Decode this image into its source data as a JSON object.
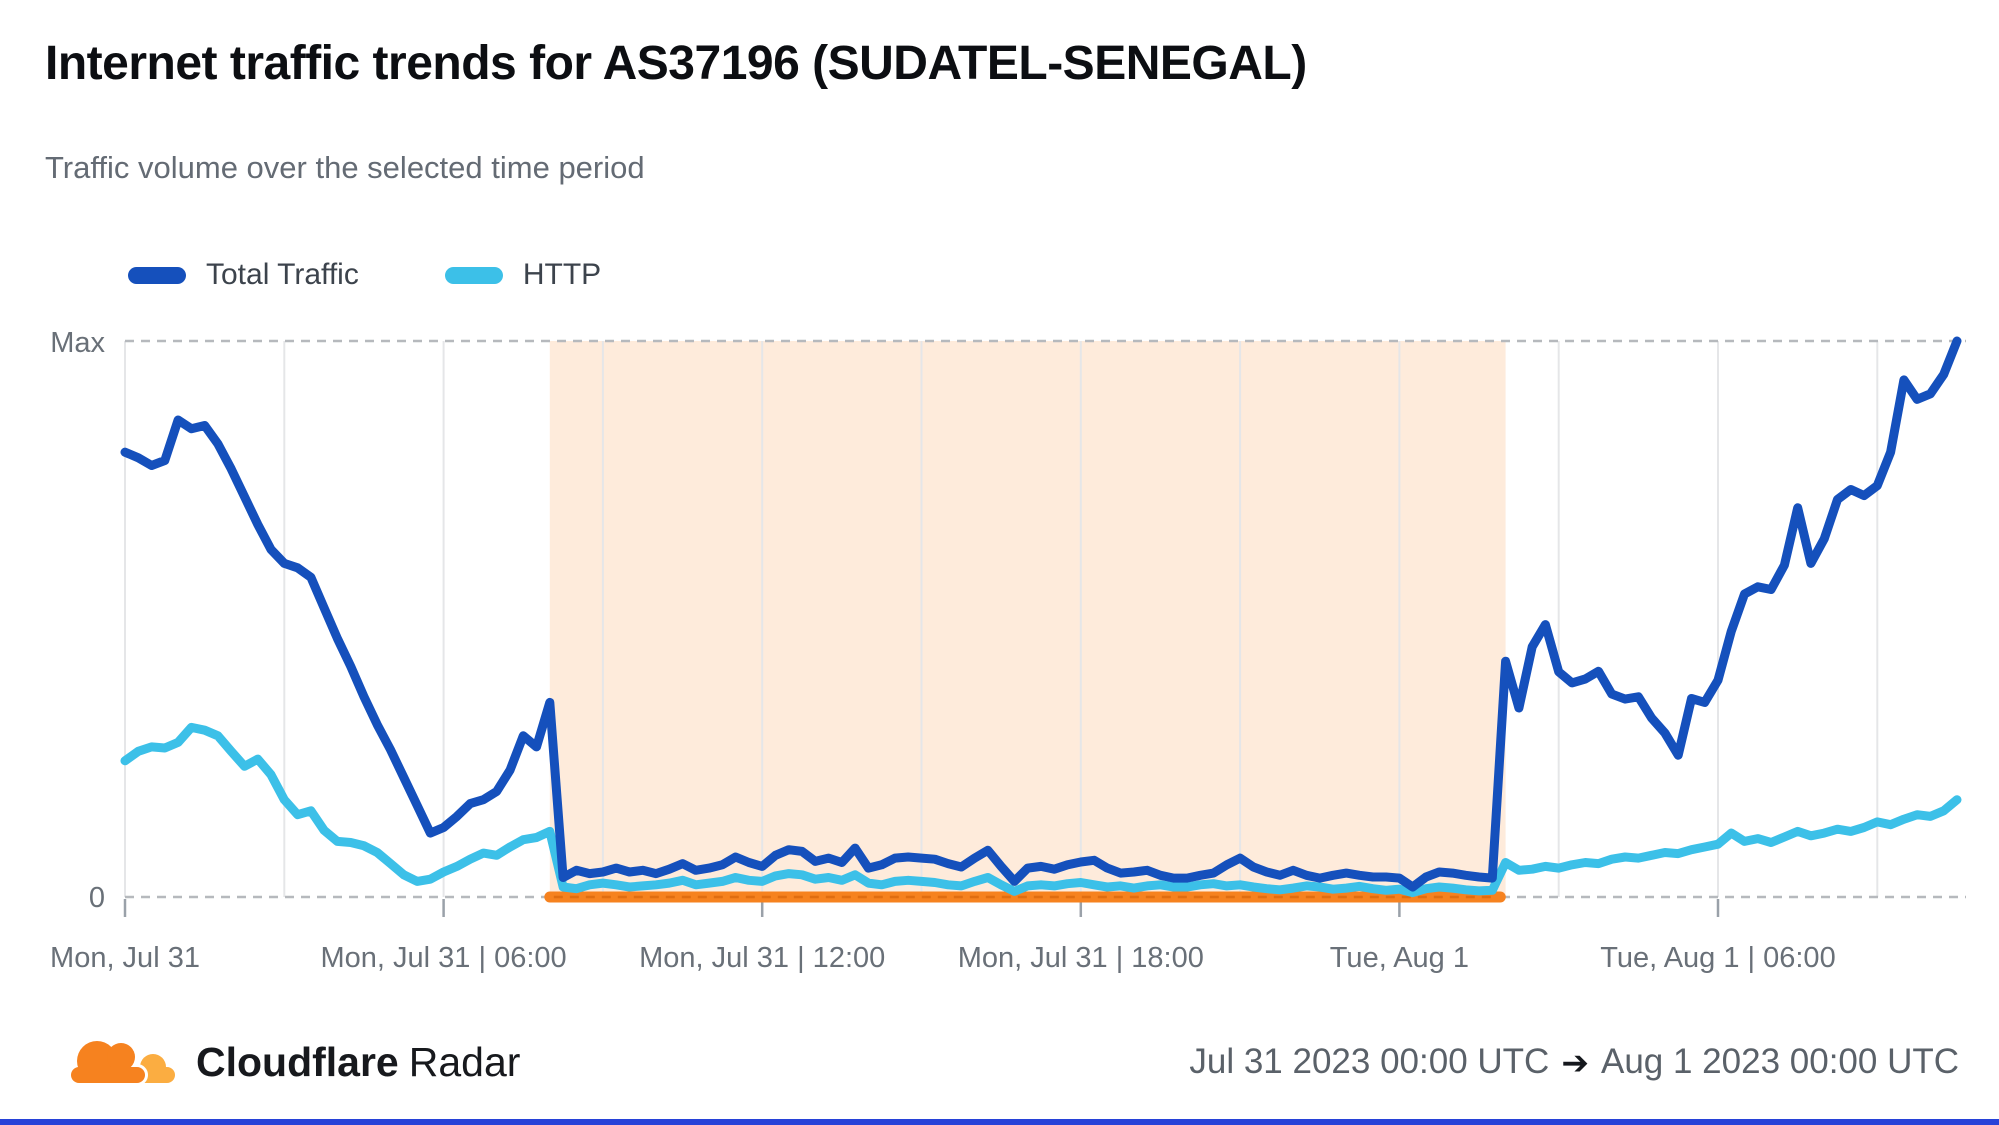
{
  "header": {
    "title": "Internet traffic trends for AS37196 (SUDATEL-SENEGAL)",
    "subtitle": "Traffic volume over the selected time period"
  },
  "legend": {
    "items": [
      {
        "label": "Total Traffic",
        "color": "#1550bc"
      },
      {
        "label": "HTTP",
        "color": "#3cc0e8"
      }
    ]
  },
  "chart": {
    "y_axis": {
      "max_label": "Max",
      "zero_label": "0"
    },
    "x_ticks": [
      {
        "hour": 0,
        "label": "Mon, Jul 31"
      },
      {
        "hour": 6,
        "label": "Mon, Jul 31 | 06:00"
      },
      {
        "hour": 12,
        "label": "Mon, Jul 31 | 12:00"
      },
      {
        "hour": 18,
        "label": "Mon, Jul 31 | 18:00"
      },
      {
        "hour": 24,
        "label": "Tue, Aug 1"
      },
      {
        "hour": 30,
        "label": "Tue, Aug 1 | 06:00"
      }
    ],
    "gridlines_hours": [
      0,
      3,
      6,
      9,
      12,
      15,
      18,
      21,
      24,
      27,
      30,
      33
    ]
  },
  "chart_data": {
    "type": "line",
    "title": "Internet traffic trends for AS37196 (SUDATEL-SENEGAL)",
    "subtitle": "Traffic volume over the selected time period",
    "x_unit": "hours since Jul 31 2023 00:00 UTC",
    "x_range": [
      0,
      34.5
    ],
    "y_range": [
      0,
      1
    ],
    "y_tick_labels": [
      "0",
      "Max"
    ],
    "grid": "vertical-3h",
    "legend_position": "top-left",
    "t_start": 0,
    "t_step": 0.25,
    "series": [
      {
        "name": "Total Traffic",
        "color": "#1550bc",
        "values": [
          0.8,
          0.79,
          0.776,
          0.785,
          0.858,
          0.842,
          0.848,
          0.815,
          0.77,
          0.72,
          0.67,
          0.625,
          0.6,
          0.592,
          0.575,
          0.52,
          0.465,
          0.415,
          0.36,
          0.31,
          0.265,
          0.215,
          0.165,
          0.115,
          0.125,
          0.145,
          0.168,
          0.175,
          0.19,
          0.228,
          0.29,
          0.27,
          0.35,
          0.035,
          0.048,
          0.042,
          0.045,
          0.052,
          0.045,
          0.048,
          0.042,
          0.05,
          0.06,
          0.048,
          0.052,
          0.058,
          0.072,
          0.062,
          0.055,
          0.075,
          0.085,
          0.082,
          0.064,
          0.07,
          0.062,
          0.088,
          0.052,
          0.058,
          0.07,
          0.072,
          0.07,
          0.068,
          0.06,
          0.054,
          0.07,
          0.084,
          0.055,
          0.028,
          0.052,
          0.055,
          0.05,
          0.058,
          0.063,
          0.066,
          0.052,
          0.043,
          0.045,
          0.048,
          0.039,
          0.034,
          0.034,
          0.039,
          0.043,
          0.058,
          0.07,
          0.054,
          0.045,
          0.039,
          0.048,
          0.039,
          0.034,
          0.039,
          0.043,
          0.039,
          0.036,
          0.036,
          0.034,
          0.018,
          0.036,
          0.045,
          0.043,
          0.039,
          0.036,
          0.034,
          0.424,
          0.34,
          0.45,
          0.49,
          0.405,
          0.385,
          0.392,
          0.406,
          0.365,
          0.356,
          0.36,
          0.322,
          0.295,
          0.255,
          0.357,
          0.35,
          0.39,
          0.478,
          0.545,
          0.558,
          0.553,
          0.597,
          0.7,
          0.6,
          0.644,
          0.715,
          0.733,
          0.722,
          0.74,
          0.8,
          0.93,
          0.895,
          0.905,
          0.94,
          1.0
        ]
      },
      {
        "name": "HTTP",
        "color": "#3cc0e8",
        "values": [
          0.245,
          0.262,
          0.27,
          0.268,
          0.278,
          0.305,
          0.3,
          0.29,
          0.262,
          0.235,
          0.248,
          0.22,
          0.175,
          0.148,
          0.155,
          0.12,
          0.1,
          0.098,
          0.092,
          0.08,
          0.06,
          0.04,
          0.028,
          0.032,
          0.045,
          0.055,
          0.068,
          0.079,
          0.075,
          0.09,
          0.103,
          0.107,
          0.118,
          0.018,
          0.015,
          0.022,
          0.025,
          0.022,
          0.018,
          0.02,
          0.022,
          0.025,
          0.03,
          0.022,
          0.025,
          0.028,
          0.035,
          0.03,
          0.028,
          0.038,
          0.042,
          0.04,
          0.032,
          0.035,
          0.03,
          0.04,
          0.025,
          0.022,
          0.028,
          0.03,
          0.028,
          0.026,
          0.022,
          0.02,
          0.028,
          0.035,
          0.022,
          0.01,
          0.02,
          0.022,
          0.02,
          0.024,
          0.026,
          0.022,
          0.018,
          0.02,
          0.016,
          0.02,
          0.022,
          0.018,
          0.018,
          0.022,
          0.024,
          0.02,
          0.022,
          0.018,
          0.015,
          0.013,
          0.016,
          0.02,
          0.018,
          0.014,
          0.016,
          0.019,
          0.015,
          0.012,
          0.014,
          0.008,
          0.015,
          0.018,
          0.016,
          0.013,
          0.011,
          0.012,
          0.062,
          0.048,
          0.05,
          0.055,
          0.052,
          0.058,
          0.062,
          0.06,
          0.068,
          0.072,
          0.07,
          0.075,
          0.08,
          0.078,
          0.085,
          0.09,
          0.095,
          0.115,
          0.1,
          0.105,
          0.098,
          0.108,
          0.118,
          0.11,
          0.115,
          0.122,
          0.118,
          0.125,
          0.135,
          0.13,
          0.14,
          0.148,
          0.145,
          0.155,
          0.175
        ]
      }
    ],
    "outage_shading": {
      "from_hour": 8.0,
      "to_hour": 26.0,
      "color": "#f6821f",
      "fill_opacity": 0.16
    },
    "outage_marker": {
      "from_hour": 8.0,
      "to_hour": 25.9,
      "value": 0,
      "color": "#f6821f"
    }
  },
  "footer": {
    "brand_bold": "Cloudflare",
    "brand_regular": "Radar",
    "date_start": "Jul 31 2023 00:00 UTC",
    "arrow": "➔",
    "date_end": "Aug 1 2023 00:00 UTC"
  },
  "colors": {
    "gridline": "#e5e6e8",
    "dashed_line": "#b6b9bd",
    "tick": "#9aa1a9",
    "axis_text": "#697078",
    "outage_dash_overlay": "#e06d10",
    "bottom_bar": "#2742d8",
    "logo_orange_dark": "#f6821f",
    "logo_orange_light": "#fbad41"
  }
}
